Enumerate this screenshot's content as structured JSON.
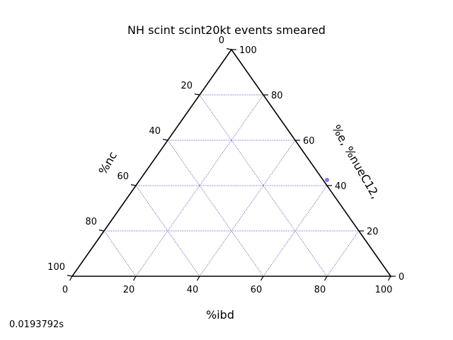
{
  "chart_data": {
    "type": "scatter",
    "subtype": "ternary",
    "title": "NH scint scint20kt events smeared",
    "axes": {
      "bottom": {
        "label": "%ibd",
        "ticks": [
          "0",
          "20",
          "40",
          "60",
          "80",
          "100"
        ]
      },
      "left": {
        "label": "%nc",
        "ticks": [
          "0",
          "20",
          "40",
          "60",
          "80",
          "100"
        ]
      },
      "right": {
        "label": "%e, %nueC12,",
        "ticks": [
          "0",
          "20",
          "40",
          "60",
          "80",
          "100"
        ]
      }
    },
    "range": [
      0,
      100
    ],
    "grid": true,
    "grid_color": "#1a1aa6",
    "frame_color": "#000000",
    "point_color": "#7b7ff0",
    "points": [
      {
        "ibd": 60,
        "nc": 0,
        "e": 40
      }
    ]
  },
  "footer": {
    "time": "0.0193792s"
  }
}
